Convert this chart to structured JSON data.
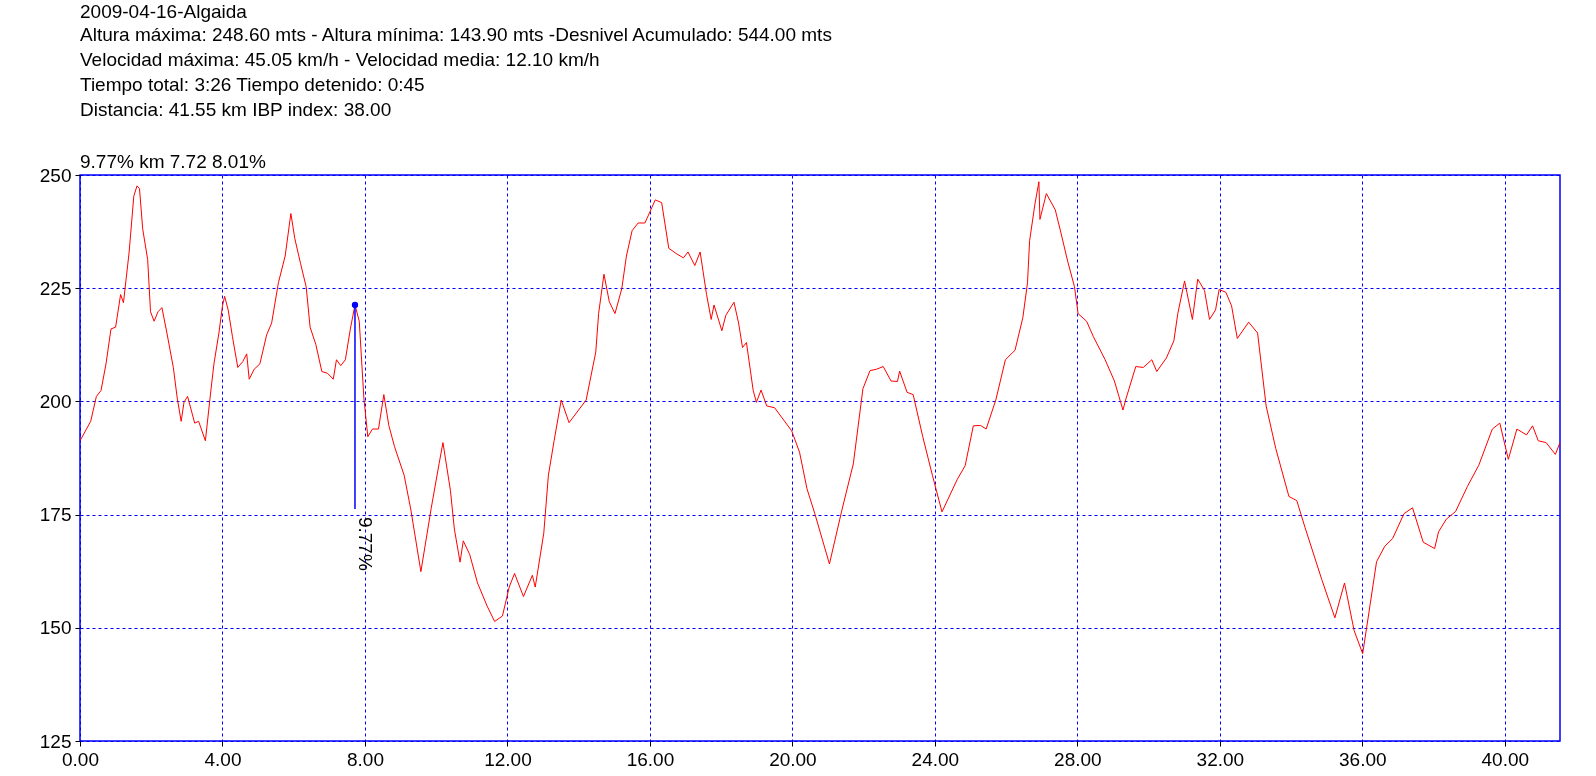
{
  "chart_data": {
    "type": "line",
    "title": "2009-04-16-Algaida",
    "subtitle": "Altura máxima: 248.60 mts - Altura mínima: 143.90 mts -Desnivel Acumulado: 544.00 mts\nVelocidad máxima: 45.05 km/h - Velocidad media: 12.10 km/h\nTiempo total: 3:26  Tiempo detenido: 0:45\nDistancia: 41.55 km IBP index: 38.00",
    "annotations": [
      "9.77% km 7.72  8.01%",
      {
        "text": "9.77%",
        "x": 7.72,
        "y": 221.3
      }
    ],
    "x": [
      0,
      0.3,
      0.46,
      0.59,
      0.73,
      0.87,
      1.0,
      1.14,
      1.22,
      1.38,
      1.51,
      1.6,
      1.67,
      1.76,
      1.9,
      1.98,
      2.08,
      2.19,
      2.3,
      2.44,
      2.62,
      2.73,
      2.84,
      2.92,
      3.02,
      3.22,
      3.33,
      3.52,
      3.65,
      3.76,
      3.9,
      4.0,
      4.06,
      4.16,
      4.28,
      4.43,
      4.57,
      4.68,
      4.75,
      4.89,
      5.05,
      5.24,
      5.38,
      5.57,
      5.76,
      5.92,
      6.03,
      6.19,
      6.35,
      6.46,
      6.62,
      6.79,
      6.95,
      7.11,
      7.2,
      7.32,
      7.45,
      7.59,
      7.72,
      7.84,
      7.97,
      8.08,
      8.21,
      8.38,
      8.53,
      8.67,
      8.83,
      9.1,
      9.29,
      9.57,
      9.86,
      10.08,
      10.19,
      10.4,
      10.51,
      10.67,
      10.76,
      10.94,
      11.16,
      11.43,
      11.64,
      11.86,
      12.05,
      12.2,
      12.45,
      12.7,
      12.78,
      13.02,
      13.15,
      13.31,
      13.51,
      13.73,
      14.21,
      14.48,
      14.56,
      14.71,
      14.86,
      15.02,
      15.21,
      15.34,
      15.5,
      15.67,
      15.86,
      16.15,
      16.33,
      16.53,
      16.75,
      16.94,
      17.07,
      17.26,
      17.41,
      17.59,
      17.72,
      17.8,
      18.02,
      18.13,
      18.36,
      18.49,
      18.6,
      18.71,
      18.9,
      18.99,
      19.12,
      19.28,
      19.5,
      19.98,
      20.2,
      20.41,
      20.63,
      21.04,
      21.39,
      21.71,
      21.98,
      22.18,
      22.36,
      22.55,
      22.77,
      22.95,
      23.01,
      23.22,
      23.39,
      23.66,
      23.93,
      24.2,
      24.63,
      24.85,
      25.08,
      25.28,
      25.44,
      25.71,
      25.98,
      26.25,
      26.47,
      26.6,
      26.66,
      26.81,
      26.92,
      26.95,
      27.13,
      27.38,
      27.54,
      27.73,
      27.92,
      28.02,
      28.26,
      28.45,
      28.78,
      29.04,
      29.28,
      29.37,
      29.64,
      29.85,
      30.09,
      30.23,
      30.5,
      30.71,
      30.82,
      31.01,
      31.23,
      31.38,
      31.57,
      31.71,
      31.88,
      31.98,
      32.17,
      32.33,
      32.49,
      32.81,
      33.06,
      33.3,
      33.57,
      33.94,
      34.16,
      34.39,
      34.86,
      35.23,
      35.5,
      35.77,
      36.01,
      36.15,
      36.4,
      36.63,
      36.85,
      37.17,
      37.41,
      37.71,
      38.03,
      38.14,
      38.36,
      38.62,
      38.95,
      39.27,
      39.65,
      39.86,
      40.1,
      40.34,
      40.61,
      40.78,
      40.94,
      41.16,
      41.42,
      41.55
    ],
    "series": [
      {
        "color": "#ff0000",
        "values": [
          191.3,
          195.6,
          201.1,
          202.4,
          208.3,
          216.0,
          216.4,
          223.6,
          221.8,
          233.0,
          245.3,
          247.6,
          247.0,
          238.1,
          231.3,
          219.8,
          217.7,
          219.8,
          220.7,
          215.1,
          207.5,
          200.7,
          195.6,
          199.8,
          201.1,
          195.2,
          195.6,
          191.3,
          200.7,
          208.3,
          215.1,
          221.1,
          223.2,
          220.2,
          214.3,
          207.5,
          208.8,
          210.5,
          204.9,
          207.1,
          208.3,
          214.7,
          217.3,
          226.2,
          232.1,
          241.5,
          236.0,
          230.5,
          225.3,
          216.4,
          212.6,
          206.6,
          206.2,
          204.9,
          209.2,
          207.9,
          209.2,
          216.0,
          221.3,
          217.7,
          200.7,
          192.2,
          193.9,
          193.9,
          201.5,
          194.7,
          190.0,
          183.7,
          176.0,
          162.4,
          176.4,
          186.2,
          190.9,
          180.3,
          171.8,
          164.5,
          169.2,
          166.2,
          159.9,
          154.8,
          151.4,
          152.6,
          159.0,
          162.0,
          156.9,
          161.6,
          159.0,
          170.9,
          183.7,
          191.3,
          200.3,
          195.3,
          200.3,
          210.9,
          219.4,
          228.1,
          222.0,
          219.4,
          224.9,
          232.1,
          237.7,
          239.4,
          239.4,
          244.5,
          243.9,
          233.8,
          232.6,
          231.7,
          233.0,
          230.0,
          233.0,
          223.6,
          218.1,
          221.3,
          215.6,
          219.0,
          221.9,
          217.3,
          211.9,
          213.0,
          202.4,
          199.8,
          202.5,
          199.0,
          198.6,
          193.5,
          188.8,
          180.7,
          175.2,
          164.1,
          176.0,
          186.2,
          202.8,
          206.8,
          207.1,
          207.7,
          204.5,
          204.4,
          206.7,
          202.0,
          201.5,
          192.2,
          183.7,
          175.6,
          182.8,
          185.8,
          194.6,
          194.7,
          193.9,
          200.3,
          209.2,
          211.3,
          218.5,
          226.2,
          235.5,
          243.6,
          248.5,
          240.2,
          245.9,
          242.3,
          237.2,
          230.9,
          225.3,
          219.4,
          217.7,
          214.3,
          209.2,
          204.5,
          198.1,
          200.7,
          207.7,
          207.5,
          209.2,
          206.6,
          209.6,
          213.4,
          219.4,
          226.6,
          218.1,
          227.0,
          224.5,
          218.1,
          220.2,
          224.7,
          224.1,
          221.1,
          213.9,
          217.5,
          215.1,
          199.0,
          189.6,
          179.0,
          178.1,
          172.2,
          160.7,
          152.2,
          159.9,
          149.4,
          144.3,
          151.5,
          164.6,
          168.0,
          169.7,
          175.2,
          176.5,
          168.9,
          167.5,
          171.2,
          174.0,
          175.7,
          181.2,
          185.9,
          193.9,
          195.2,
          187.2,
          193.9,
          192.6,
          194.6,
          191.3,
          190.9,
          188.3,
          190.9
        ]
      }
    ],
    "xlim": [
      0,
      41.55
    ],
    "xticks": [
      {
        "value": 0,
        "label": "0.00"
      },
      {
        "value": 4,
        "label": "4.00"
      },
      {
        "value": 8,
        "label": "8.00"
      },
      {
        "value": 12,
        "label": "12.00"
      },
      {
        "value": 16,
        "label": "16.00"
      },
      {
        "value": 20,
        "label": "20.00"
      },
      {
        "value": 24,
        "label": "24.00"
      },
      {
        "value": 28,
        "label": "28.00"
      },
      {
        "value": 32,
        "label": "32.00"
      },
      {
        "value": 36,
        "label": "36.00"
      },
      {
        "value": 40,
        "label": "40.00"
      }
    ],
    "ylim": [
      125,
      250
    ],
    "yticks": [
      125,
      150,
      175,
      200,
      225,
      250
    ],
    "grid": true
  }
}
